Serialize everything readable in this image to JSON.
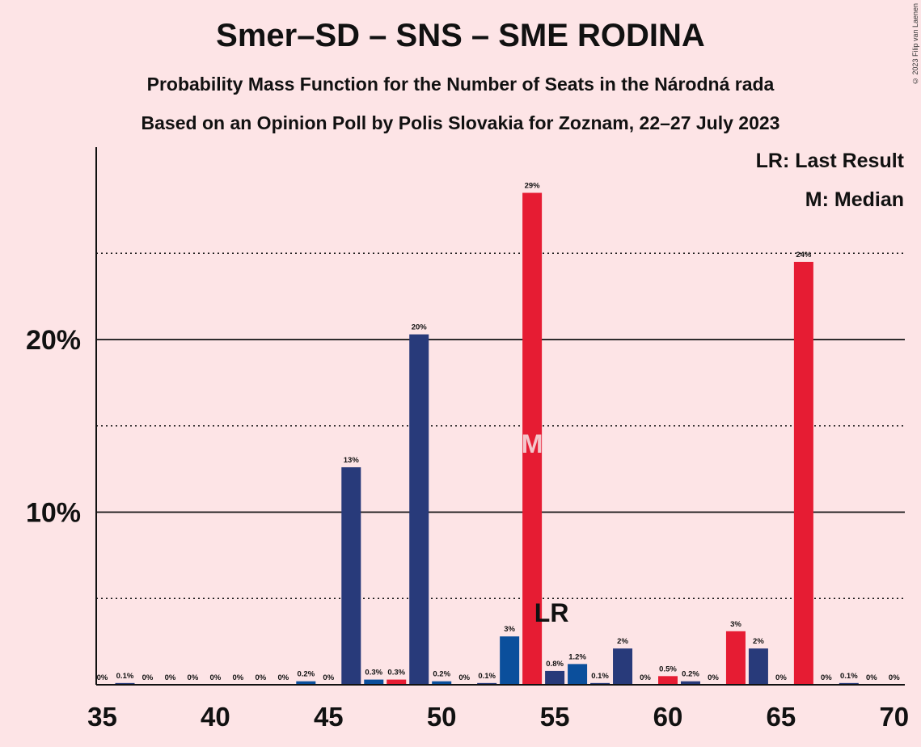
{
  "title": "Smer–SD – SNS – SME RODINA",
  "subtitle1": "Probability Mass Function for the Number of Seats in the Národná rada",
  "subtitle2": "Based on an Opinion Poll by Polis Slovakia for Zoznam, 22–27 July 2023",
  "copyright": "© 2023 Filip van Laenen",
  "legend": {
    "last_result": "LR: Last Result",
    "median": "M: Median"
  },
  "colors": {
    "background": "#fde4e6",
    "navy": "#283a7a",
    "blue": "#0b4f9c",
    "red": "#e61c33"
  },
  "chart_data": {
    "type": "bar",
    "xlim": [
      35,
      70
    ],
    "ylim": [
      0,
      30
    ],
    "x_ticks": [
      35,
      40,
      45,
      50,
      55,
      60,
      65,
      70
    ],
    "y_ticks": [
      {
        "value": 10,
        "label": "10%"
      },
      {
        "value": 20,
        "label": "20%"
      }
    ],
    "minor_gridlines": [
      5,
      15,
      25
    ],
    "median_marker": {
      "x": 54,
      "label": "M"
    },
    "last_result_marker": {
      "x": 55,
      "label": "LR"
    },
    "bars": [
      {
        "x": 35,
        "value": 0,
        "label": "0%",
        "color": "navy"
      },
      {
        "x": 36,
        "value": 0.1,
        "label": "0.1%",
        "color": "navy"
      },
      {
        "x": 37,
        "value": 0,
        "label": "0%",
        "color": "navy"
      },
      {
        "x": 38,
        "value": 0,
        "label": "0%",
        "color": "navy"
      },
      {
        "x": 39,
        "value": 0,
        "label": "0%",
        "color": "navy"
      },
      {
        "x": 40,
        "value": 0,
        "label": "0%",
        "color": "navy"
      },
      {
        "x": 41,
        "value": 0,
        "label": "0%",
        "color": "navy"
      },
      {
        "x": 42,
        "value": 0,
        "label": "0%",
        "color": "navy"
      },
      {
        "x": 43,
        "value": 0,
        "label": "0%",
        "color": "navy"
      },
      {
        "x": 44,
        "value": 0.2,
        "label": "0.2%",
        "color": "blue"
      },
      {
        "x": 45,
        "value": 0,
        "label": "0%",
        "color": "navy"
      },
      {
        "x": 46,
        "value": 12.6,
        "label": "13%",
        "color": "navy"
      },
      {
        "x": 47,
        "value": 0.3,
        "label": "0.3%",
        "color": "blue"
      },
      {
        "x": 48,
        "value": 0.3,
        "label": "0.3%",
        "color": "red"
      },
      {
        "x": 49,
        "value": 20.3,
        "label": "20%",
        "color": "navy"
      },
      {
        "x": 50,
        "value": 0.2,
        "label": "0.2%",
        "color": "blue"
      },
      {
        "x": 51,
        "value": 0,
        "label": "0%",
        "color": "navy"
      },
      {
        "x": 52,
        "value": 0.1,
        "label": "0.1%",
        "color": "navy"
      },
      {
        "x": 53,
        "value": 2.8,
        "label": "3%",
        "color": "blue"
      },
      {
        "x": 54,
        "value": 28.5,
        "label": "29%",
        "color": "red"
      },
      {
        "x": 55,
        "value": 0.8,
        "label": "0.8%",
        "color": "navy"
      },
      {
        "x": 56,
        "value": 1.2,
        "label": "1.2%",
        "color": "blue"
      },
      {
        "x": 57,
        "value": 0.1,
        "label": "0.1%",
        "color": "navy"
      },
      {
        "x": 58,
        "value": 2.1,
        "label": "2%",
        "color": "navy"
      },
      {
        "x": 59,
        "value": 0,
        "label": "0%",
        "color": "navy"
      },
      {
        "x": 60,
        "value": 0.5,
        "label": "0.5%",
        "color": "red"
      },
      {
        "x": 61,
        "value": 0.2,
        "label": "0.2%",
        "color": "navy"
      },
      {
        "x": 62,
        "value": 0,
        "label": "0%",
        "color": "navy"
      },
      {
        "x": 63,
        "value": 3.1,
        "label": "3%",
        "color": "red"
      },
      {
        "x": 64,
        "value": 2.1,
        "label": "2%",
        "color": "navy"
      },
      {
        "x": 65,
        "value": 0,
        "label": "0%",
        "color": "navy"
      },
      {
        "x": 66,
        "value": 24.5,
        "label": "24%",
        "color": "red"
      },
      {
        "x": 67,
        "value": 0,
        "label": "0%",
        "color": "navy"
      },
      {
        "x": 68,
        "value": 0.1,
        "label": "0.1%",
        "color": "navy"
      },
      {
        "x": 69,
        "value": 0,
        "label": "0%",
        "color": "navy"
      },
      {
        "x": 70,
        "value": 0,
        "label": "0%",
        "color": "navy"
      }
    ]
  }
}
